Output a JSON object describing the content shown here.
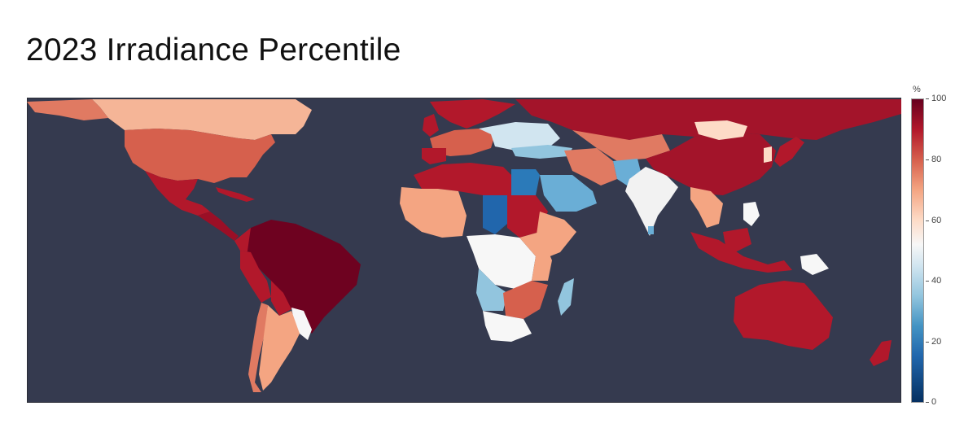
{
  "title": "2023 Irradiance Percentile",
  "colorbar": {
    "unit": "%",
    "ticks": [
      "100",
      "80",
      "60",
      "40",
      "20",
      "0"
    ],
    "colors": {
      "low": "#053061",
      "mid": "#f7f7f7",
      "high": "#67001f",
      "ocean": "#353a4f"
    }
  },
  "map_data": {
    "type": "choropleth",
    "metric": "irradiance percentile",
    "range": [
      0,
      100
    ],
    "regions": [
      {
        "region": "United States",
        "value": 80
      },
      {
        "region": "Canada",
        "value": 65
      },
      {
        "region": "Mexico",
        "value": 90
      },
      {
        "region": "Brazil",
        "value": 98
      },
      {
        "region": "Argentina",
        "value": 65
      },
      {
        "region": "Chile",
        "value": 72
      },
      {
        "region": "Peru",
        "value": 88
      },
      {
        "region": "Egypt",
        "value": 20
      },
      {
        "region": "Chad",
        "value": 15
      },
      {
        "region": "Saudi Arabia",
        "value": 28
      },
      {
        "region": "India",
        "value": 50
      },
      {
        "region": "China",
        "value": 92
      },
      {
        "region": "Russia",
        "value": 92
      },
      {
        "region": "Mongolia",
        "value": 62
      },
      {
        "region": "Australia",
        "value": 88
      },
      {
        "region": "Indonesia",
        "value": 90
      },
      {
        "region": "Madagascar",
        "value": 35
      },
      {
        "region": "South Africa",
        "value": 50
      },
      {
        "region": "DR Congo",
        "value": 52
      },
      {
        "region": "Angola",
        "value": 35
      },
      {
        "region": "Papua New Guinea",
        "value": 50
      },
      {
        "region": "New Zealand",
        "value": 88
      },
      {
        "region": "Japan",
        "value": 92
      }
    ]
  }
}
